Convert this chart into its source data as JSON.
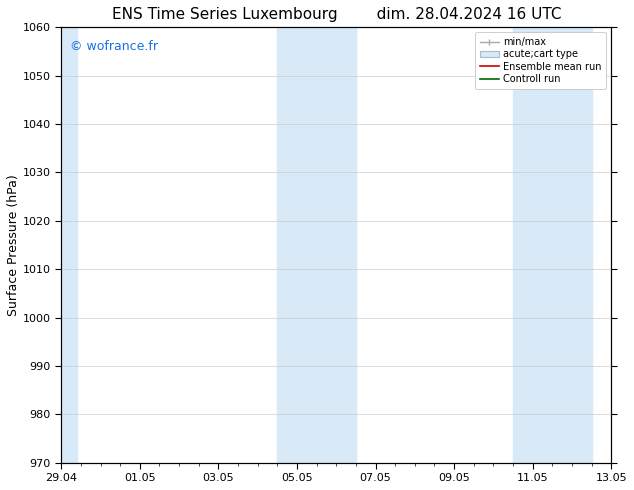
{
  "title_left": "ENS Time Series Luxembourg",
  "title_right": "dim. 28.04.2024 16 UTC",
  "ylabel": "Surface Pressure (hPa)",
  "ylim": [
    970,
    1060
  ],
  "yticks": [
    970,
    980,
    990,
    1000,
    1010,
    1020,
    1030,
    1040,
    1050,
    1060
  ],
  "xlim": [
    0,
    14
  ],
  "xtick_labels": [
    "29.04",
    "01.05",
    "03.05",
    "05.05",
    "07.05",
    "09.05",
    "11.05",
    "13.05"
  ],
  "xtick_positions": [
    0,
    2,
    4,
    6,
    8,
    10,
    12,
    14
  ],
  "watermark": "© wofrance.fr",
  "watermark_color": "#1a6ee8",
  "background_color": "#ffffff",
  "plot_bg_color": "#ffffff",
  "shaded_bands": [
    {
      "x_start": 0.0,
      "x_end": 0.4,
      "color": "#d8eaf7"
    },
    {
      "x_start": 5.5,
      "x_end": 7.5,
      "color": "#d8eaf7"
    },
    {
      "x_start": 11.5,
      "x_end": 13.5,
      "color": "#d8eaf7"
    }
  ],
  "legend_entries": [
    {
      "label": "min/max"
    },
    {
      "label": "acute;cart type"
    },
    {
      "label": "Ensemble mean run"
    },
    {
      "label": "Controll run"
    }
  ],
  "title_fontsize": 11,
  "tick_fontsize": 8,
  "ylabel_fontsize": 9,
  "legend_fontsize": 7,
  "grid_color": "#cccccc",
  "spine_color": "#000000",
  "minmax_color": "#aaaaaa",
  "acutecart_facecolor": "#d8eaf7",
  "acutecart_edgecolor": "#aabbcc",
  "ensemble_color": "#cc0000",
  "controll_color": "#006600"
}
